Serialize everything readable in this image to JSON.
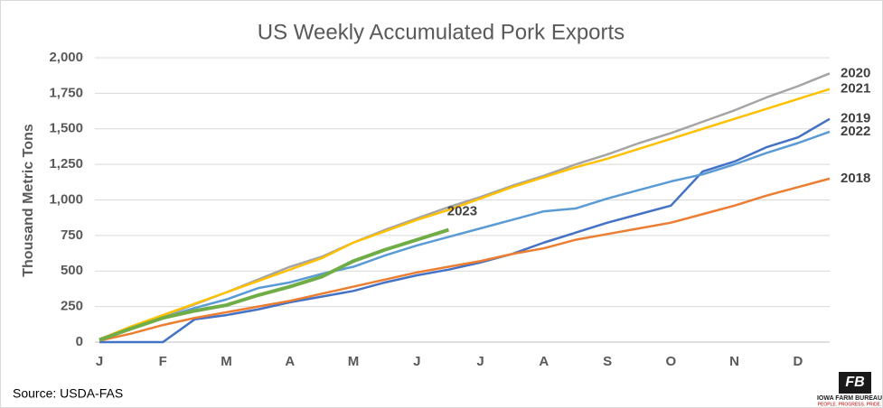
{
  "chart_data": {
    "type": "line",
    "title": "US Weekly Accumulated Pork Exports",
    "y_label": "Thousand Metric Tons",
    "source": "Source: USDA-FAS",
    "categories": [
      "J",
      null,
      "F",
      null,
      "M",
      null,
      "A",
      null,
      "M",
      null,
      "J",
      null,
      "J",
      null,
      "A",
      null,
      "S",
      null,
      "O",
      null,
      "N",
      null,
      "D",
      null
    ],
    "ylim": [
      0,
      2000
    ],
    "yticks": [
      0,
      250,
      500,
      750,
      {
        "value": 1000,
        "label": "1,000"
      },
      {
        "value": 1250,
        "label": "1,250"
      },
      {
        "value": 1500,
        "label": "1,500"
      },
      {
        "value": 1750,
        "label": "1,750"
      },
      {
        "value": 2000,
        "label": "2,000"
      }
    ],
    "grid": true,
    "series": [
      {
        "name": "2020",
        "color": "#a5a5a5",
        "values": [
          20,
          100,
          180,
          265,
          350,
          440,
          530,
          600,
          700,
          790,
          870,
          950,
          1020,
          1100,
          1170,
          1250,
          1320,
          1400,
          1470,
          1550,
          1630,
          1720,
          1800,
          1890
        ]
      },
      {
        "name": "2021",
        "color": "#ffc000",
        "values": [
          20,
          110,
          190,
          270,
          350,
          430,
          510,
          590,
          700,
          780,
          860,
          930,
          1010,
          1090,
          1160,
          1230,
          1290,
          1360,
          1430,
          1500,
          1570,
          1640,
          1710,
          1780
        ]
      },
      {
        "name": "2019",
        "color": "#4472c4",
        "values": [
          0,
          0,
          0,
          160,
          190,
          230,
          280,
          320,
          360,
          420,
          470,
          510,
          560,
          620,
          700,
          770,
          840,
          900,
          960,
          1200,
          1270,
          1370,
          1440,
          1570
        ]
      },
      {
        "name": "2022",
        "color": "#5b9bd5",
        "values": [
          20,
          90,
          170,
          240,
          300,
          380,
          420,
          480,
          530,
          610,
          680,
          740,
          800,
          860,
          920,
          940,
          1010,
          1070,
          1130,
          1180,
          1250,
          1330,
          1400,
          1480
        ]
      },
      {
        "name": "2018",
        "color": "#ed7d31",
        "values": [
          10,
          60,
          120,
          170,
          210,
          250,
          290,
          340,
          390,
          440,
          490,
          530,
          570,
          620,
          660,
          720,
          760,
          800,
          840,
          900,
          960,
          1030,
          1090,
          1150
        ]
      },
      {
        "name": "2023",
        "color": "#70ad47",
        "values": [
          15,
          95,
          170,
          220,
          260,
          330,
          390,
          460,
          570,
          650,
          720,
          790,
          null,
          null,
          null,
          null,
          null,
          null,
          null,
          null,
          null,
          null,
          null,
          null
        ]
      }
    ]
  },
  "logo": {
    "name": "IOWA FARM BUREAU",
    "tagline": "PEOPLE. PROGRESS. PRIDE."
  }
}
